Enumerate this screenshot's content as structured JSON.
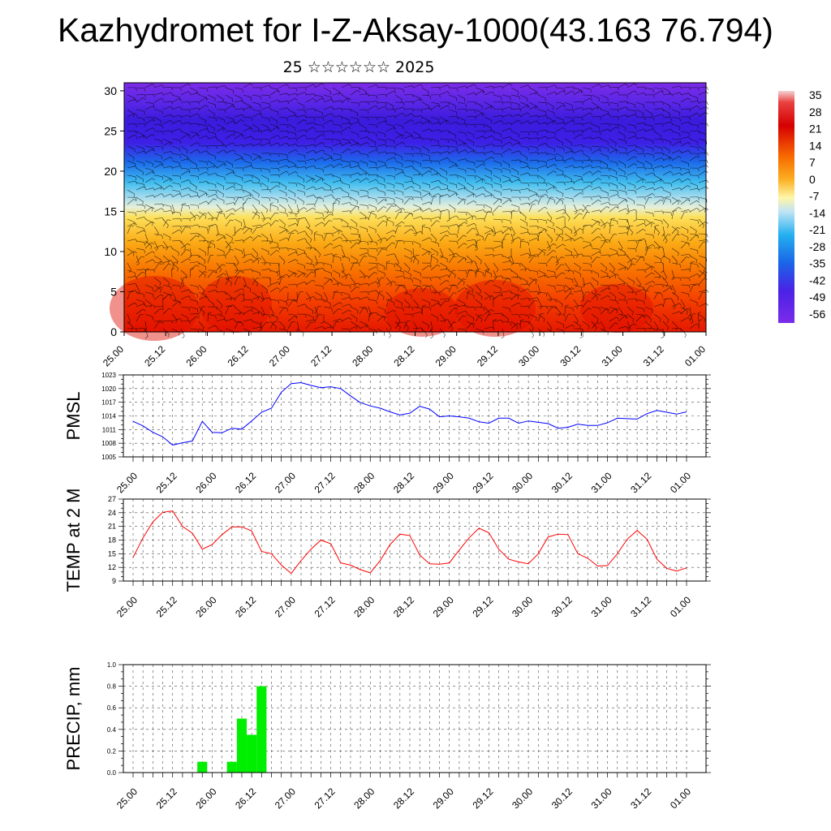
{
  "title": "Kazhydromet for I-Z-Aksay-1000(43.163 76.794)",
  "subtitle": "25 ☆☆☆☆☆☆ 2025",
  "colorbar_labels": [
    "35",
    "28",
    "21",
    "14",
    "7",
    "0",
    "-7",
    "-14",
    "-21",
    "-28",
    "-35",
    "-42",
    "-49",
    "-56"
  ],
  "colors": {
    "pressure_line": "#0000ff",
    "temp_line": "#ff0000",
    "precip_bar": "#00ee00"
  },
  "chart_data": [
    {
      "type": "heatmap",
      "name": "upper-air cross-section",
      "x_tick_labels": [
        "25.00",
        "25.12",
        "26.00",
        "26.12",
        "27.00",
        "27.12",
        "28.00",
        "28.12",
        "29.00",
        "29.12",
        "30.00",
        "30.12",
        "31.00",
        "31.12",
        "01.00"
      ],
      "y_tick_labels": [
        "0",
        "5",
        "10",
        "15",
        "20",
        "25",
        "30"
      ],
      "ylim": [
        0,
        31
      ],
      "color_scale": [
        "-56",
        "35"
      ],
      "overlay": "wind barbs"
    },
    {
      "type": "line",
      "name": "pmsl",
      "ylabel": "PMSL",
      "ylim": [
        1005,
        1023
      ],
      "y_tick_labels": [
        "1005",
        "1008",
        "1011",
        "1014",
        "1017",
        "1020",
        "1023"
      ],
      "x_tick_labels": [
        "25.00",
        "25.12",
        "26.00",
        "26.12",
        "27.00",
        "27.12",
        "28.00",
        "28.12",
        "29.00",
        "29.12",
        "30.00",
        "30.12",
        "31.00",
        "31.12",
        "01.00"
      ],
      "values": [
        1012.8,
        1011.8,
        1010.4,
        1009.4,
        1007.6,
        1008.1,
        1008.5,
        1012.8,
        1010.4,
        1010.3,
        1011.3,
        1011.1,
        1012.9,
        1014.8,
        1015.7,
        1019.2,
        1021.1,
        1021.3,
        1020.7,
        1020.2,
        1020.4,
        1020.0,
        1018.4,
        1016.9,
        1016.2,
        1015.7,
        1014.9,
        1014.2,
        1014.6,
        1016.1,
        1015.5,
        1013.8,
        1014.0,
        1013.8,
        1013.5,
        1012.7,
        1012.4,
        1013.5,
        1013.5,
        1012.4,
        1012.9,
        1012.6,
        1012.3,
        1011.3,
        1011.5,
        1012.2,
        1011.9,
        1011.9,
        1012.5,
        1013.5,
        1013.4,
        1013.3,
        1014.5,
        1015.2,
        1014.8,
        1014.4,
        1014.9
      ]
    },
    {
      "type": "line",
      "name": "temp-2m",
      "ylabel": "TEMP at 2 M",
      "ylim": [
        9,
        27
      ],
      "y_tick_labels": [
        "9",
        "12",
        "15",
        "18",
        "21",
        "24",
        "27"
      ],
      "x_tick_labels": [
        "25.00",
        "25.12",
        "26.00",
        "26.12",
        "27.00",
        "27.12",
        "28.00",
        "28.12",
        "29.00",
        "29.12",
        "30.00",
        "30.12",
        "31.00",
        "31.12",
        "01.00"
      ],
      "values": [
        14.2,
        18.5,
        22.0,
        24.1,
        24.4,
        21.0,
        19.5,
        16.0,
        17.0,
        19.2,
        20.9,
        20.9,
        20.0,
        15.5,
        15.0,
        12.5,
        10.7,
        13.5,
        16.0,
        18.0,
        17.2,
        13.0,
        12.5,
        11.5,
        10.8,
        13.5,
        17.0,
        19.3,
        19.0,
        14.7,
        12.8,
        12.7,
        13.0,
        15.8,
        18.5,
        20.6,
        19.6,
        16.0,
        13.8,
        13.2,
        12.8,
        15.0,
        18.7,
        19.3,
        19.2,
        15.0,
        14.0,
        12.3,
        12.4,
        15.0,
        18.2,
        20.1,
        18.2,
        13.8,
        11.8,
        11.2,
        11.9
      ]
    },
    {
      "type": "bar",
      "name": "precip",
      "ylabel": "PRECIP, mm",
      "ylim": [
        0,
        1.0
      ],
      "y_tick_labels": [
        "0.0",
        "0.2",
        "0.4",
        "0.6",
        "0.8",
        "1.0"
      ],
      "x_tick_labels": [
        "25.00",
        "25.12",
        "26.00",
        "26.12",
        "27.00",
        "27.12",
        "28.00",
        "28.12",
        "29.00",
        "29.12",
        "30.00",
        "30.12",
        "31.00",
        "31.12",
        "01.00"
      ],
      "values": [
        0,
        0,
        0,
        0,
        0,
        0,
        0,
        0.1,
        0,
        0,
        0.1,
        0.5,
        0.35,
        0.8,
        0,
        0,
        0,
        0,
        0,
        0,
        0,
        0,
        0,
        0,
        0,
        0,
        0,
        0,
        0,
        0,
        0,
        0,
        0,
        0,
        0,
        0,
        0,
        0,
        0,
        0,
        0,
        0,
        0,
        0,
        0,
        0,
        0,
        0,
        0,
        0,
        0,
        0,
        0,
        0,
        0,
        0,
        0
      ]
    }
  ]
}
